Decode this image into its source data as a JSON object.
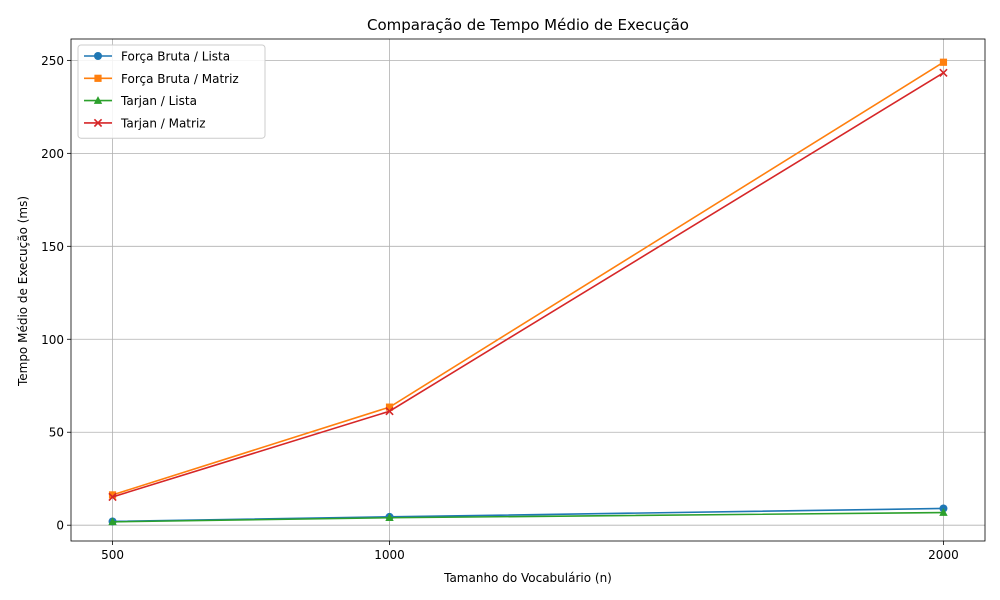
{
  "chart_data": {
    "type": "line",
    "title": "Comparação de Tempo Médio de Execução",
    "xlabel": "Tamanho do Vocabulário (n)",
    "ylabel": "Tempo Médio de Execução (ms)",
    "x": [
      500,
      1000,
      2000
    ],
    "x_tick_labels": [
      "500",
      "1000",
      "2000"
    ],
    "xlim": [
      425,
      2075
    ],
    "ylim": [
      -8.5,
      261.5
    ],
    "y_ticks": [
      0,
      50,
      100,
      150,
      200,
      250
    ],
    "y_tick_labels": [
      "0",
      "50",
      "100",
      "150",
      "200",
      "250"
    ],
    "grid": true,
    "legend_position": "top-left",
    "series": [
      {
        "name": "Força Bruta / Lista",
        "values": [
          2.0,
          4.5,
          9.0
        ],
        "color": "#1f77b4",
        "marker": "circle"
      },
      {
        "name": "Força Bruta / Matriz",
        "values": [
          16.3,
          63.5,
          249.0
        ],
        "color": "#ff7f0e",
        "marker": "square"
      },
      {
        "name": "Tarjan / Lista",
        "values": [
          1.8,
          4.0,
          6.8
        ],
        "color": "#2ca02c",
        "marker": "triangle"
      },
      {
        "name": "Tarjan / Matriz",
        "values": [
          15.2,
          61.3,
          243.3
        ],
        "color": "#d62728",
        "marker": "x"
      }
    ]
  }
}
